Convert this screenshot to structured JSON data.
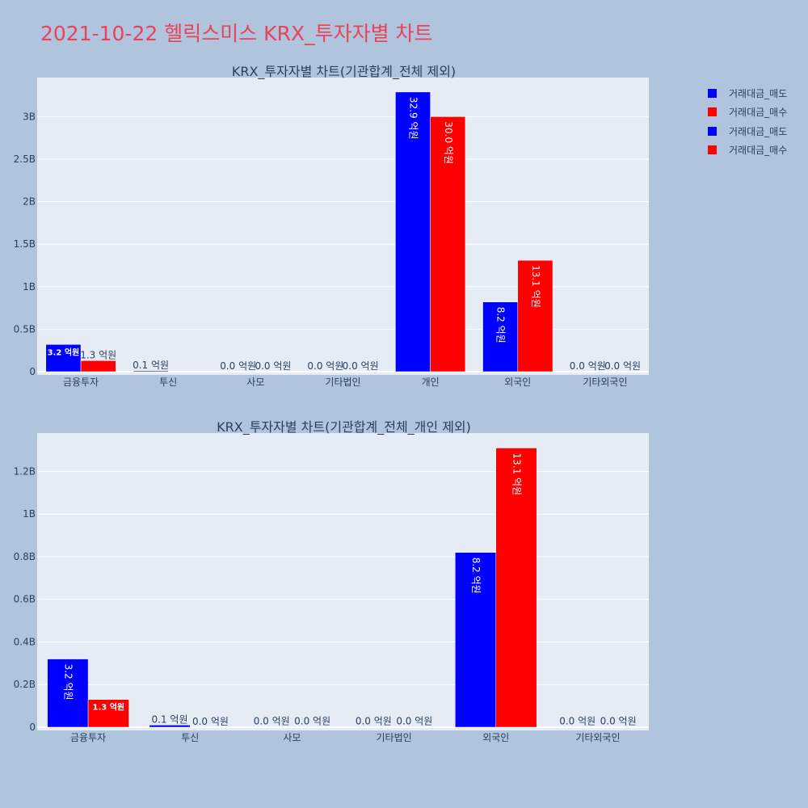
{
  "title": "2021-10-22 헬릭스미스 KRX_투자자별 차트",
  "colors": {
    "sell": "#0000ff",
    "buy": "#ff0000",
    "plot_bg": "#e5ecf6",
    "page_bg": "#b0c4de",
    "title": "#e8435a",
    "text": "#2a3f5f"
  },
  "legend": [
    {
      "label": "거래대금_매도",
      "color": "#0000ff"
    },
    {
      "label": "거래대금_매수",
      "color": "#ff0000"
    },
    {
      "label": "거래대금_매도",
      "color": "#0000ff"
    },
    {
      "label": "거래대금_매수",
      "color": "#ff0000"
    }
  ],
  "chart_data": [
    {
      "type": "bar",
      "title": "KRX_투자자별 차트(기관합계_전체 제외)",
      "categories": [
        "금융투자",
        "투신",
        "사모",
        "기타법인",
        "개인",
        "외국인",
        "기타외국인"
      ],
      "series": [
        {
          "name": "거래대금_매도",
          "color": "#0000ff",
          "values": [
            320000000,
            10000000,
            1000000,
            1000000,
            3290000000,
            820000000,
            1000000
          ],
          "labels": [
            "3.2 억원",
            "0.1 억원",
            "0.0 억원",
            "0.0 억원",
            "32.9 억원",
            "8.2 억원",
            "0.0 억원"
          ]
        },
        {
          "name": "거래대금_매수",
          "color": "#ff0000",
          "values": [
            130000000,
            0,
            1000000,
            1000000,
            3000000000,
            1310000000,
            1000000
          ],
          "labels": [
            "1.3 억원",
            "",
            "0.0 억원",
            "0.0 억원",
            "30.0 억원",
            "13.1 억원",
            "0.0 억원"
          ]
        }
      ],
      "yticks": [
        0,
        500000000,
        1000000000,
        1500000000,
        2000000000,
        2500000000,
        3000000000
      ],
      "ytick_labels": [
        "0",
        "0.5B",
        "1B",
        "1.5B",
        "2B",
        "2.5B",
        "3B"
      ],
      "ylim": [
        0,
        3460000000
      ]
    },
    {
      "type": "bar",
      "title": "KRX_투자자별 차트(기관합계_전체_개인 제외)",
      "categories": [
        "금융투자",
        "투신",
        "사모",
        "기타법인",
        "외국인",
        "기타외국인"
      ],
      "series": [
        {
          "name": "거래대금_매도",
          "color": "#0000ff",
          "values": [
            320000000,
            10000000,
            1000000,
            1000000,
            820000000,
            1000000
          ],
          "labels": [
            "3.2 억원",
            "0.1 억원",
            "0.0 억원",
            "0.0 억원",
            "8.2 억원",
            "0.0 억원"
          ]
        },
        {
          "name": "거래대금_매수",
          "color": "#ff0000",
          "values": [
            130000000,
            0,
            1000000,
            1000000,
            1310000000,
            1000000
          ],
          "labels": [
            "1.3 억원",
            "0.0 억원",
            "0.0 억원",
            "0.0 억원",
            "13.1 억원",
            "0.0 억원"
          ]
        }
      ],
      "yticks": [
        0,
        200000000,
        400000000,
        600000000,
        800000000,
        1000000000,
        1200000000
      ],
      "ytick_labels": [
        "0",
        "0.2B",
        "0.4B",
        "0.6B",
        "0.8B",
        "1B",
        "1.2B"
      ],
      "ylim": [
        0,
        1380000000
      ]
    }
  ]
}
